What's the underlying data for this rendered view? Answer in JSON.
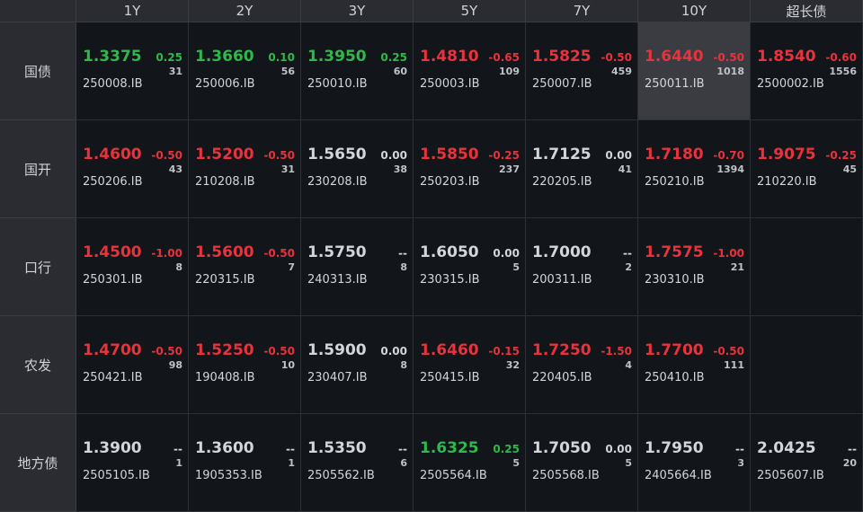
{
  "tenors": [
    "1Y",
    "2Y",
    "3Y",
    "5Y",
    "7Y",
    "10Y",
    "超长债"
  ],
  "colors": {
    "up": "#e8323c",
    "down": "#2fb94a",
    "flat": "#d2d6dc",
    "highlight": "#3a3c41"
  },
  "rows": [
    {
      "label": "国债",
      "cells": [
        {
          "yield": "1.3375",
          "change": "0.25",
          "count": "31",
          "code": "250008.IB",
          "color": "down"
        },
        {
          "yield": "1.3660",
          "change": "0.10",
          "count": "56",
          "code": "250006.IB",
          "color": "down"
        },
        {
          "yield": "1.3950",
          "change": "0.25",
          "count": "60",
          "code": "250010.IB",
          "color": "down"
        },
        {
          "yield": "1.4810",
          "change": "-0.65",
          "count": "109",
          "code": "250003.IB",
          "color": "up"
        },
        {
          "yield": "1.5825",
          "change": "-0.50",
          "count": "459",
          "code": "250007.IB",
          "color": "up"
        },
        {
          "yield": "1.6440",
          "change": "-0.50",
          "count": "1018",
          "code": "250011.IB",
          "color": "up",
          "highlighted": true
        },
        {
          "yield": "1.8540",
          "change": "-0.60",
          "count": "1556",
          "code": "2500002.IB",
          "color": "up"
        }
      ]
    },
    {
      "label": "国开",
      "cells": [
        {
          "yield": "1.4600",
          "change": "-0.50",
          "count": "43",
          "code": "250206.IB",
          "color": "up"
        },
        {
          "yield": "1.5200",
          "change": "-0.50",
          "count": "31",
          "code": "210208.IB",
          "color": "up"
        },
        {
          "yield": "1.5650",
          "change": "0.00",
          "count": "38",
          "code": "230208.IB",
          "color": "flat"
        },
        {
          "yield": "1.5850",
          "change": "-0.25",
          "count": "237",
          "code": "250203.IB",
          "color": "up"
        },
        {
          "yield": "1.7125",
          "change": "0.00",
          "count": "41",
          "code": "220205.IB",
          "color": "flat"
        },
        {
          "yield": "1.7180",
          "change": "-0.70",
          "count": "1394",
          "code": "250210.IB",
          "color": "up"
        },
        {
          "yield": "1.9075",
          "change": "-0.25",
          "count": "45",
          "code": "210220.IB",
          "color": "up"
        }
      ]
    },
    {
      "label": "口行",
      "cells": [
        {
          "yield": "1.4500",
          "change": "-1.00",
          "count": "8",
          "code": "250301.IB",
          "color": "up"
        },
        {
          "yield": "1.5600",
          "change": "-0.50",
          "count": "7",
          "code": "220315.IB",
          "color": "up"
        },
        {
          "yield": "1.5750",
          "change": "--",
          "count": "8",
          "code": "240313.IB",
          "color": "flat"
        },
        {
          "yield": "1.6050",
          "change": "0.00",
          "count": "5",
          "code": "230315.IB",
          "color": "flat"
        },
        {
          "yield": "1.7000",
          "change": "--",
          "count": "2",
          "code": "200311.IB",
          "color": "flat"
        },
        {
          "yield": "1.7575",
          "change": "-1.00",
          "count": "21",
          "code": "230310.IB",
          "color": "up"
        },
        null
      ]
    },
    {
      "label": "农发",
      "cells": [
        {
          "yield": "1.4700",
          "change": "-0.50",
          "count": "98",
          "code": "250421.IB",
          "color": "up"
        },
        {
          "yield": "1.5250",
          "change": "-0.50",
          "count": "10",
          "code": "190408.IB",
          "color": "up"
        },
        {
          "yield": "1.5900",
          "change": "0.00",
          "count": "8",
          "code": "230407.IB",
          "color": "flat"
        },
        {
          "yield": "1.6460",
          "change": "-0.15",
          "count": "32",
          "code": "250415.IB",
          "color": "up"
        },
        {
          "yield": "1.7250",
          "change": "-1.50",
          "count": "4",
          "code": "220405.IB",
          "color": "up"
        },
        {
          "yield": "1.7700",
          "change": "-0.50",
          "count": "111",
          "code": "250410.IB",
          "color": "up"
        },
        null
      ]
    },
    {
      "label": "地方债",
      "cells": [
        {
          "yield": "1.3900",
          "change": "--",
          "count": "1",
          "code": "2505105.IB",
          "color": "flat"
        },
        {
          "yield": "1.3600",
          "change": "--",
          "count": "1",
          "code": "1905353.IB",
          "color": "flat"
        },
        {
          "yield": "1.5350",
          "change": "--",
          "count": "6",
          "code": "2505562.IB",
          "color": "flat"
        },
        {
          "yield": "1.6325",
          "change": "0.25",
          "count": "5",
          "code": "2505564.IB",
          "color": "down"
        },
        {
          "yield": "1.7050",
          "change": "0.00",
          "count": "5",
          "code": "2505568.IB",
          "color": "flat"
        },
        {
          "yield": "1.7950",
          "change": "--",
          "count": "3",
          "code": "2405664.IB",
          "color": "flat"
        },
        {
          "yield": "2.0425",
          "change": "--",
          "count": "20",
          "code": "2505607.IB",
          "color": "flat"
        }
      ]
    }
  ]
}
